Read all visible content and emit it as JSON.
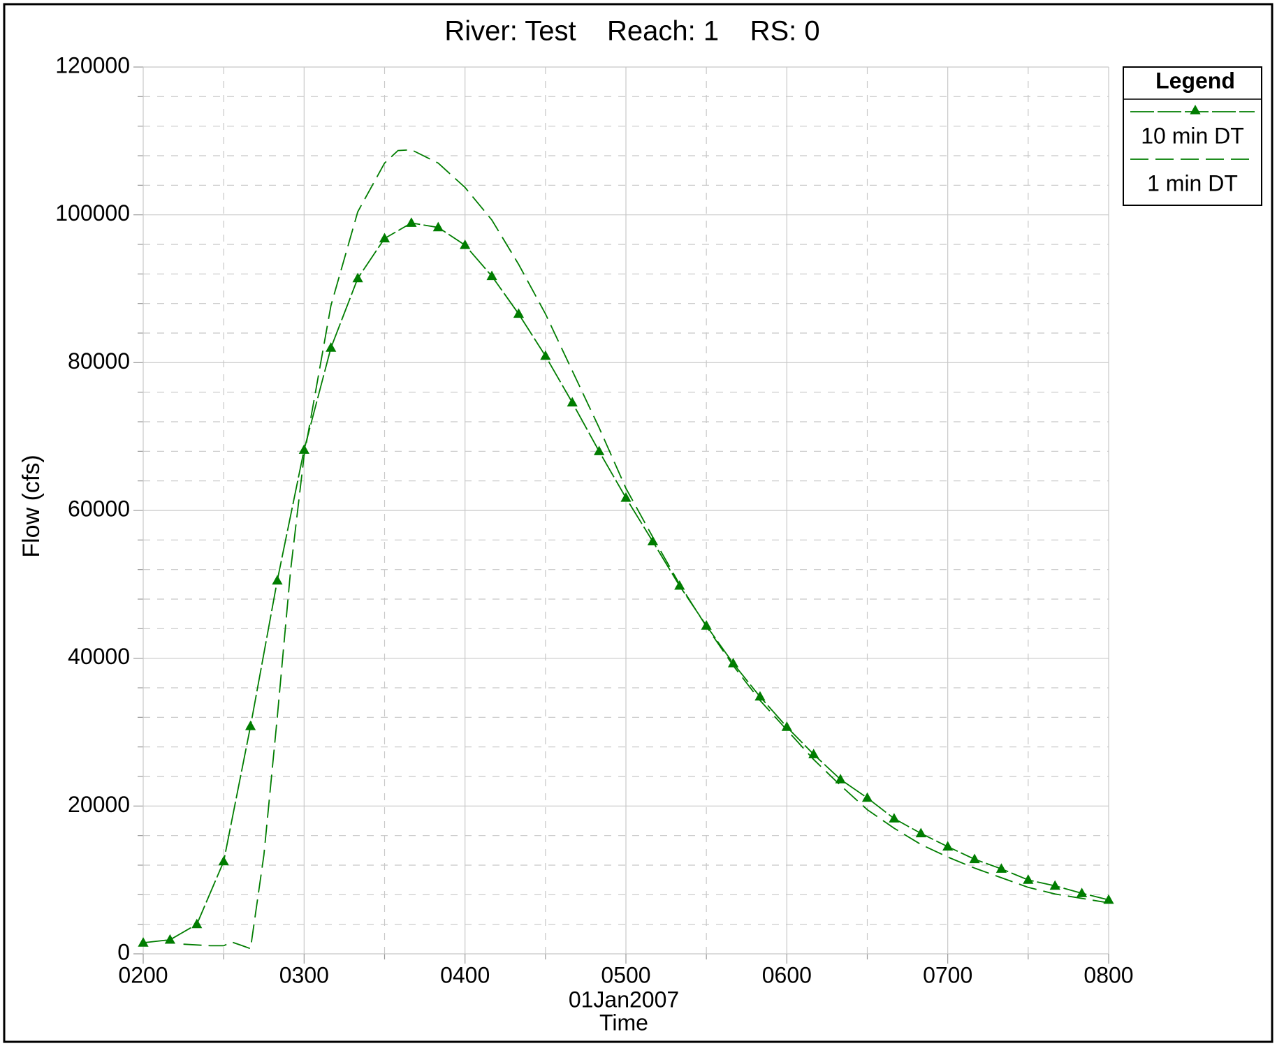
{
  "chart_data": {
    "type": "line",
    "title": "River: Test    Reach: 1    RS: 0",
    "x_axis_label": "Time",
    "x_axis_sublabel": "01Jan2007",
    "y_axis_label": "Flow (cfs)",
    "legend_title": "Legend",
    "legend_position": "upper right outside",
    "grid": true,
    "xlim": [
      120,
      480
    ],
    "xticks": [
      {
        "value": 120,
        "label": "0200"
      },
      {
        "value": 180,
        "label": "0300"
      },
      {
        "value": 240,
        "label": "0400"
      },
      {
        "value": 300,
        "label": "0500"
      },
      {
        "value": 360,
        "label": "0600"
      },
      {
        "value": 420,
        "label": "0700"
      },
      {
        "value": 480,
        "label": "0800"
      }
    ],
    "ylim": [
      0,
      120000
    ],
    "yticks": [
      0,
      20000,
      40000,
      60000,
      80000,
      100000,
      120000
    ],
    "series": [
      {
        "name": "10 min DT",
        "color": "#007d00",
        "marker": "triangle",
        "x": [
          120,
          130,
          140,
          150,
          160,
          170,
          180,
          190,
          200,
          210,
          220,
          230,
          240,
          250,
          260,
          270,
          280,
          290,
          300,
          310,
          320,
          330,
          340,
          350,
          360,
          370,
          380,
          390,
          400,
          410,
          420,
          430,
          440,
          450,
          460,
          470,
          480
        ],
        "values": [
          1500,
          1900,
          4000,
          12500,
          30800,
          50500,
          68200,
          82000,
          91400,
          96800,
          98900,
          98300,
          95900,
          91700,
          86600,
          80900,
          74600,
          68000,
          61700,
          55800,
          49800,
          44400,
          39300,
          34800,
          30700,
          27000,
          23600,
          21100,
          18300,
          16300,
          14500,
          12800,
          11500,
          10000,
          9200,
          8200,
          7300
        ]
      },
      {
        "name": "1 min DT",
        "color": "#007d00",
        "x": [
          135,
          145,
          150,
          153,
          157,
          160,
          165,
          170,
          175,
          180,
          190,
          200,
          210,
          215,
          220,
          230,
          240,
          250,
          260,
          270,
          280,
          290,
          300,
          310,
          320,
          330,
          340,
          350,
          360,
          370,
          380,
          390,
          400,
          410,
          420,
          430,
          440,
          450,
          460,
          470,
          480
        ],
        "values": [
          1300,
          1100,
          1100,
          1600,
          1100,
          700,
          13400,
          32000,
          52000,
          67400,
          87700,
          100400,
          107000,
          108700,
          108800,
          107000,
          103700,
          99300,
          93300,
          86600,
          78900,
          71200,
          63000,
          56400,
          50000,
          44300,
          39000,
          34300,
          30300,
          26300,
          22800,
          19500,
          17000,
          14800,
          13100,
          11600,
          10300,
          9000,
          8100,
          7500,
          6900
        ]
      }
    ]
  }
}
